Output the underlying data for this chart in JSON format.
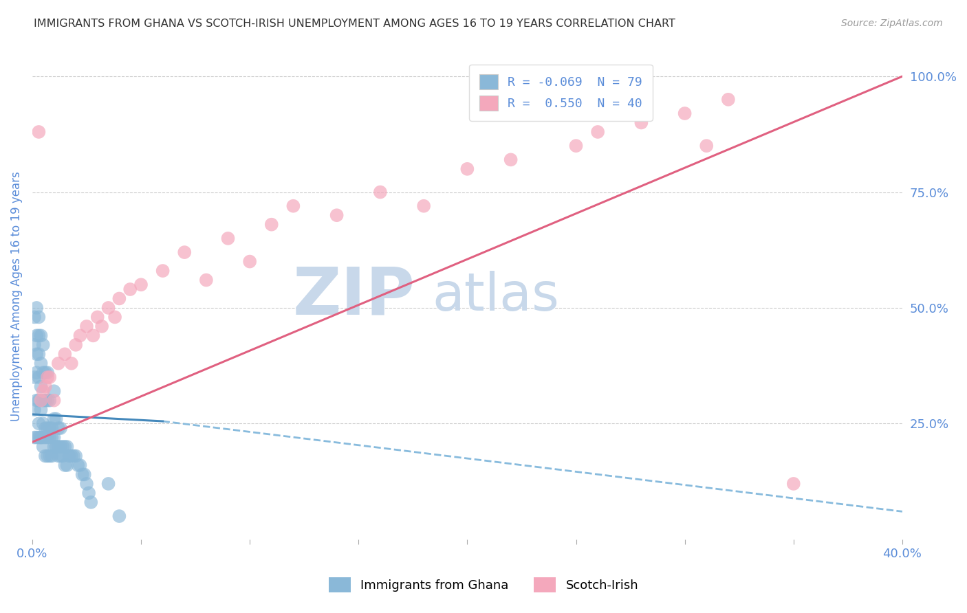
{
  "title": "IMMIGRANTS FROM GHANA VS SCOTCH-IRISH UNEMPLOYMENT AMONG AGES 16 TO 19 YEARS CORRELATION CHART",
  "source_text": "Source: ZipAtlas.com",
  "ylabel": "Unemployment Among Ages 16 to 19 years",
  "xlim": [
    0.0,
    0.4
  ],
  "ylim": [
    0.0,
    1.05
  ],
  "yticks_right": [
    0.25,
    0.5,
    0.75,
    1.0
  ],
  "ytick_right_labels": [
    "25.0%",
    "50.0%",
    "75.0%",
    "100.0%"
  ],
  "ghana_R": -0.069,
  "ghana_N": 79,
  "scotch_R": 0.55,
  "scotch_N": 40,
  "ghana_color": "#8ab8d8",
  "scotch_color": "#f4a8bc",
  "ghana_line_solid_color": "#4488bb",
  "ghana_line_dash_color": "#88bbdd",
  "scotch_line_color": "#e06080",
  "watermark_text": "ZIPatlas",
  "watermark_color": "#c8d8ea",
  "background_color": "#ffffff",
  "axis_label_color": "#5b8dd9",
  "tick_label_color": "#5b8dd9",
  "ghana_scatter_x": [
    0.001,
    0.001,
    0.001,
    0.001,
    0.002,
    0.002,
    0.002,
    0.002,
    0.002,
    0.003,
    0.003,
    0.003,
    0.003,
    0.003,
    0.003,
    0.004,
    0.004,
    0.004,
    0.004,
    0.004,
    0.005,
    0.005,
    0.005,
    0.005,
    0.005,
    0.006,
    0.006,
    0.006,
    0.006,
    0.007,
    0.007,
    0.007,
    0.007,
    0.008,
    0.008,
    0.008,
    0.009,
    0.009,
    0.01,
    0.01,
    0.01,
    0.011,
    0.011,
    0.012,
    0.012,
    0.013,
    0.013,
    0.014,
    0.015,
    0.016,
    0.001,
    0.002,
    0.003,
    0.004,
    0.005,
    0.006,
    0.007,
    0.008,
    0.009,
    0.01,
    0.011,
    0.012,
    0.013,
    0.014,
    0.015,
    0.016,
    0.017,
    0.018,
    0.019,
    0.02,
    0.021,
    0.022,
    0.023,
    0.024,
    0.025,
    0.026,
    0.027,
    0.035,
    0.04
  ],
  "ghana_scatter_y": [
    0.28,
    0.35,
    0.42,
    0.48,
    0.3,
    0.36,
    0.4,
    0.44,
    0.5,
    0.25,
    0.3,
    0.35,
    0.4,
    0.44,
    0.48,
    0.22,
    0.28,
    0.33,
    0.38,
    0.44,
    0.2,
    0.25,
    0.3,
    0.36,
    0.42,
    0.18,
    0.24,
    0.3,
    0.36,
    0.18,
    0.24,
    0.3,
    0.36,
    0.18,
    0.24,
    0.3,
    0.18,
    0.24,
    0.2,
    0.26,
    0.32,
    0.2,
    0.26,
    0.18,
    0.24,
    0.18,
    0.24,
    0.18,
    0.16,
    0.16,
    0.22,
    0.22,
    0.22,
    0.22,
    0.22,
    0.22,
    0.22,
    0.22,
    0.22,
    0.22,
    0.2,
    0.2,
    0.2,
    0.2,
    0.2,
    0.2,
    0.18,
    0.18,
    0.18,
    0.18,
    0.16,
    0.16,
    0.14,
    0.14,
    0.12,
    0.1,
    0.08,
    0.12,
    0.05
  ],
  "scotch_scatter_x": [
    0.003,
    0.004,
    0.005,
    0.006,
    0.007,
    0.008,
    0.01,
    0.012,
    0.015,
    0.018,
    0.02,
    0.022,
    0.025,
    0.028,
    0.03,
    0.032,
    0.035,
    0.038,
    0.04,
    0.045,
    0.05,
    0.06,
    0.07,
    0.08,
    0.09,
    0.1,
    0.11,
    0.12,
    0.14,
    0.16,
    0.18,
    0.2,
    0.22,
    0.25,
    0.26,
    0.28,
    0.3,
    0.31,
    0.32,
    0.35
  ],
  "scotch_scatter_y": [
    0.88,
    0.3,
    0.32,
    0.33,
    0.35,
    0.35,
    0.3,
    0.38,
    0.4,
    0.38,
    0.42,
    0.44,
    0.46,
    0.44,
    0.48,
    0.46,
    0.5,
    0.48,
    0.52,
    0.54,
    0.55,
    0.58,
    0.62,
    0.56,
    0.65,
    0.6,
    0.68,
    0.72,
    0.7,
    0.75,
    0.72,
    0.8,
    0.82,
    0.85,
    0.88,
    0.9,
    0.92,
    0.85,
    0.95,
    0.12
  ],
  "ghana_line_x0": 0.0,
  "ghana_line_x_break": 0.06,
  "ghana_line_x1": 0.4,
  "ghana_line_y_at_0": 0.27,
  "ghana_line_y_at_break": 0.255,
  "ghana_line_y_at_end": 0.06,
  "scotch_line_x0": 0.0,
  "scotch_line_x1": 0.4,
  "scotch_line_y_at_0": 0.21,
  "scotch_line_y_at_1": 1.0
}
